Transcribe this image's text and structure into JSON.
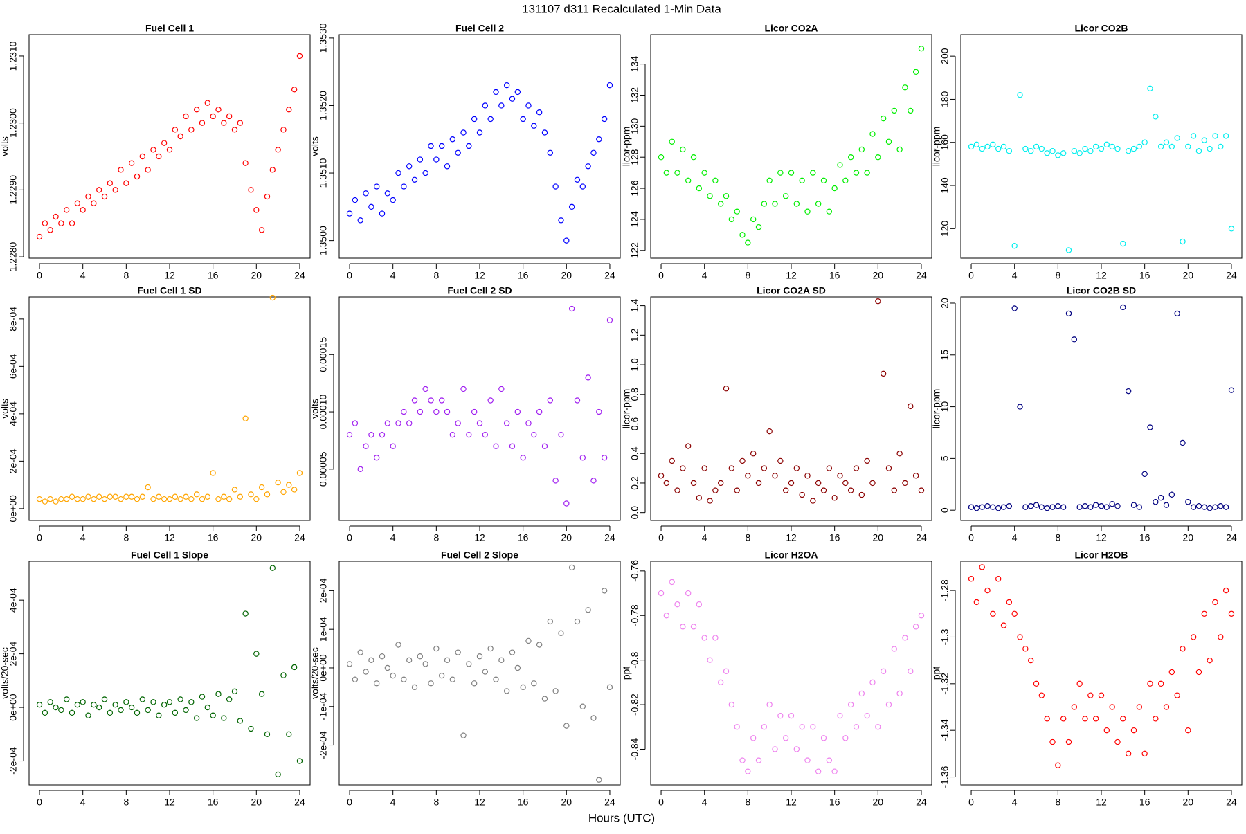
{
  "title": "131107   d311   Recalculated 1-Min Data",
  "xlabel": "Hours (UTC)",
  "x": [
    0,
    0.5,
    1,
    1.5,
    2,
    2.5,
    3,
    3.5,
    4,
    4.5,
    5,
    5.5,
    6,
    6.5,
    7,
    7.5,
    8,
    8.5,
    9,
    9.5,
    10,
    10.5,
    11,
    11.5,
    12,
    12.5,
    13,
    13.5,
    14,
    14.5,
    15,
    15.5,
    16,
    16.5,
    17,
    17.5,
    18,
    18.5,
    19,
    19.5,
    20,
    20.5,
    21,
    21.5,
    22,
    22.5,
    23,
    23.5,
    24
  ],
  "xlim": [
    -0.96,
    24.96
  ],
  "xticks": [
    0,
    4,
    8,
    12,
    16,
    20,
    24
  ],
  "chart_data": [
    {
      "type": "scatter",
      "title": "Fuel Cell 1",
      "ylabel": "volts",
      "color": "#ff0000",
      "ylim": [
        1.22798,
        1.23132
      ],
      "yticks": [
        {
          "value": 1.228,
          "label": "1.2280"
        },
        {
          "value": 1.229,
          "label": "1.2290"
        },
        {
          "value": 1.23,
          "label": "1.2300"
        },
        {
          "value": 1.231,
          "label": "1.2310"
        }
      ],
      "values": [
        1.2283,
        1.2285,
        1.2284,
        1.2286,
        1.2285,
        1.2287,
        1.2285,
        1.2288,
        1.2287,
        1.2289,
        1.2288,
        1.229,
        1.2289,
        1.2291,
        1.229,
        1.2293,
        1.2291,
        1.2294,
        1.2292,
        1.2295,
        1.2293,
        1.2296,
        1.2295,
        1.2297,
        1.2296,
        1.2299,
        1.2298,
        1.2301,
        1.2299,
        1.2302,
        1.23,
        1.2303,
        1.2301,
        1.2302,
        1.23,
        1.2301,
        1.2299,
        1.23,
        1.2294,
        1.229,
        1.2287,
        1.2284,
        1.2289,
        1.2293,
        1.2296,
        1.2299,
        1.2302,
        1.2305,
        1.231
      ]
    },
    {
      "type": "scatter",
      "title": "Fuel Cell 2",
      "ylabel": "volts",
      "color": "#0000ff",
      "ylim": [
        1.34974,
        1.35305
      ],
      "yticks": [
        {
          "value": 1.35,
          "label": "1.3500"
        },
        {
          "value": 1.351,
          "label": "1.3510"
        },
        {
          "value": 1.352,
          "label": "1.3520"
        },
        {
          "value": 1.353,
          "label": "1.3530"
        }
      ],
      "values": [
        1.3504,
        1.3506,
        1.3503,
        1.3507,
        1.3505,
        1.3508,
        1.3504,
        1.3507,
        1.3506,
        1.351,
        1.3508,
        1.3511,
        1.3509,
        1.3512,
        1.351,
        1.3514,
        1.3512,
        1.3514,
        1.3511,
        1.3515,
        1.3513,
        1.3516,
        1.3514,
        1.3518,
        1.3516,
        1.352,
        1.3518,
        1.3522,
        1.352,
        1.3523,
        1.3521,
        1.3522,
        1.3518,
        1.352,
        1.3517,
        1.3519,
        1.3516,
        1.3513,
        1.3508,
        1.3503,
        1.35,
        1.3505,
        1.3509,
        1.3508,
        1.3511,
        1.3513,
        1.3515,
        1.3518,
        1.3523
      ]
    },
    {
      "type": "scatter",
      "title": "Licor CO2A",
      "ylabel": "licor-ppm",
      "color": "#00ee00",
      "ylim": [
        121.5,
        135.9
      ],
      "yticks": [
        122,
        124,
        126,
        128,
        130,
        132,
        134
      ],
      "values": [
        128,
        127,
        129,
        127,
        128.5,
        126.5,
        128,
        126,
        127,
        125.5,
        126.5,
        125,
        125.5,
        124,
        124.5,
        123,
        122.5,
        124,
        123.5,
        125,
        126.5,
        125,
        127,
        125.5,
        127,
        125,
        126.5,
        124.5,
        127,
        125,
        126.5,
        124.5,
        126,
        127.5,
        126.5,
        128,
        127,
        128.5,
        127,
        129.5,
        128,
        130.5,
        129,
        131,
        128.5,
        132.5,
        131,
        133.5,
        135
      ]
    },
    {
      "type": "scatter",
      "title": "Licor CO2B",
      "ylabel": "licor-ppm",
      "color": "#00eeee",
      "ylim": [
        106.3,
        210
      ],
      "yticks": [
        120,
        140,
        160,
        180,
        200
      ],
      "values": [
        158,
        159,
        157,
        158,
        159,
        157,
        158,
        156,
        112,
        182,
        157,
        156,
        158,
        157,
        155,
        156,
        154,
        155,
        110,
        156,
        155,
        157,
        156,
        158,
        157,
        159,
        158,
        157,
        113,
        156,
        157,
        158,
        160,
        185,
        172,
        158,
        160,
        158,
        162,
        114,
        158,
        163,
        156,
        161,
        157,
        163,
        158,
        163,
        120
      ]
    },
    {
      "type": "scatter",
      "title": "Fuel Cell 1 SD",
      "ylabel": "volts",
      "color": "#ffa500",
      "ylim": [
        -5e-05,
        0.000893
      ],
      "yticks": [
        {
          "value": 0,
          "label": "0e+00"
        },
        {
          "value": 0.0002,
          "label": "2e-04"
        },
        {
          "value": 0.0004,
          "label": "4e-04"
        },
        {
          "value": 0.0006,
          "label": "6e-04"
        },
        {
          "value": 0.0008,
          "label": "8e-04"
        }
      ],
      "values": [
        4e-05,
        3e-05,
        4e-05,
        3e-05,
        4e-05,
        4e-05,
        5e-05,
        4e-05,
        4e-05,
        5e-05,
        4e-05,
        5e-05,
        4e-05,
        5e-05,
        5e-05,
        4e-05,
        5e-05,
        5e-05,
        4e-05,
        5e-05,
        9e-05,
        4e-05,
        5e-05,
        4e-05,
        4e-05,
        5e-05,
        4e-05,
        5e-05,
        4e-05,
        6e-05,
        4e-05,
        5e-05,
        0.00015,
        4e-05,
        5e-05,
        4e-05,
        8e-05,
        5e-05,
        0.00038,
        6e-05,
        4e-05,
        9e-05,
        6e-05,
        0.00089,
        0.00011,
        7e-05,
        0.0001,
        8e-05,
        0.00015
      ]
    },
    {
      "type": "scatter",
      "title": "Fuel Cell 2 SD",
      "ylabel": "volts",
      "color": "#a020f0",
      "ylim": [
        5.2e-06,
        0.0002003
      ],
      "yticks": [
        5e-05,
        {
          "value": 0.0001,
          "label": "0.00010"
        },
        0.00015
      ],
      "values": [
        8e-05,
        9e-05,
        5e-05,
        7e-05,
        8e-05,
        6e-05,
        8e-05,
        9e-05,
        7e-05,
        9e-05,
        0.0001,
        9e-05,
        0.00011,
        0.0001,
        0.00012,
        0.00011,
        0.0001,
        0.00011,
        0.0001,
        8e-05,
        9e-05,
        0.00012,
        8e-05,
        0.0001,
        9e-05,
        8e-05,
        0.00011,
        7e-05,
        0.00012,
        9e-05,
        7e-05,
        0.0001,
        6e-05,
        9e-05,
        8e-05,
        0.0001,
        7e-05,
        0.00011,
        4e-05,
        8e-05,
        2e-05,
        0.00019,
        0.00011,
        6e-05,
        0.00013,
        4e-05,
        0.0001,
        6e-05,
        0.00018
      ]
    },
    {
      "type": "scatter",
      "title": "Licor CO2A SD",
      "ylabel": "licor-ppm",
      "color": "#8b0000",
      "ylim": [
        -0.053,
        1.459
      ],
      "yticks": [
        {
          "value": 0,
          "label": "0.0"
        },
        0.2,
        0.4,
        0.6,
        0.8,
        {
          "value": 1,
          "label": "1.0"
        },
        1.2,
        1.4
      ],
      "values": [
        0.25,
        0.2,
        0.35,
        0.15,
        0.3,
        0.45,
        0.2,
        0.1,
        0.3,
        0.08,
        0.15,
        0.2,
        0.84,
        0.3,
        0.15,
        0.35,
        0.25,
        0.4,
        0.2,
        0.3,
        0.55,
        0.25,
        0.35,
        0.15,
        0.2,
        0.3,
        0.12,
        0.25,
        0.08,
        0.2,
        0.15,
        0.3,
        0.1,
        0.25,
        0.2,
        0.15,
        0.3,
        0.12,
        0.35,
        0.2,
        1.43,
        0.94,
        0.3,
        0.15,
        0.4,
        0.2,
        0.72,
        0.25,
        0.15
      ]
    },
    {
      "type": "scatter",
      "title": "Licor CO2B SD",
      "ylabel": "licor-ppm",
      "color": "#000080",
      "ylim": [
        -0.99,
        20.6
      ],
      "yticks": [
        0,
        5,
        10,
        15,
        20
      ],
      "values": [
        0.3,
        0.2,
        0.3,
        0.4,
        0.3,
        0.2,
        0.3,
        0.4,
        19.5,
        10,
        0.3,
        0.4,
        0.5,
        0.3,
        0.2,
        0.3,
        0.4,
        0.3,
        19,
        16.5,
        0.3,
        0.4,
        0.3,
        0.5,
        0.4,
        0.3,
        0.6,
        0.4,
        19.6,
        11.5,
        0.5,
        0.3,
        3.5,
        8,
        0.8,
        1.2,
        0.5,
        1.5,
        19,
        6.5,
        0.8,
        0.3,
        0.4,
        0.3,
        0.2,
        0.3,
        0.4,
        0.3,
        11.6
      ]
    },
    {
      "type": "scatter",
      "title": "Fuel Cell 1 Slope",
      "ylabel": "volts/20-sec",
      "color": "#006400",
      "ylim": [
        -0.000289,
        0.000545
      ],
      "yticks": [
        {
          "value": -0.0002,
          "label": "-2e-04"
        },
        {
          "value": 0,
          "label": "0e+00"
        },
        {
          "value": 0.0002,
          "label": "2e-04"
        },
        {
          "value": 0.0004,
          "label": "4e-04"
        }
      ],
      "values": [
        1e-05,
        -2e-05,
        2e-05,
        0,
        -1e-05,
        3e-05,
        -2e-05,
        1e-05,
        2e-05,
        -3e-05,
        1e-05,
        0,
        3e-05,
        -2e-05,
        1e-05,
        -1e-05,
        2e-05,
        0,
        -2e-05,
        3e-05,
        -1e-05,
        2e-05,
        -3e-05,
        1e-05,
        2e-05,
        -2e-05,
        3e-05,
        -1e-05,
        2e-05,
        -4e-05,
        4e-05,
        0,
        -3e-05,
        5e-05,
        -4e-05,
        3e-05,
        6e-05,
        -5e-05,
        0.00035,
        -8e-05,
        0.0002,
        5e-05,
        -0.0001,
        0.00052,
        -0.00025,
        0.00012,
        -0.0001,
        0.00015,
        -0.0002
      ]
    },
    {
      "type": "scatter",
      "title": "Fuel Cell 2 Slope",
      "ylabel": "volts/20-sec",
      "color": "#808080",
      "ylim": [
        -0.000303,
        0.000276
      ],
      "yticks": [
        {
          "value": -0.0002,
          "label": "-2e-04"
        },
        {
          "value": -0.0001,
          "label": "-1e-04"
        },
        {
          "value": 0,
          "label": "0e+00"
        },
        {
          "value": 0.0001,
          "label": "1e-04"
        },
        {
          "value": 0.0002,
          "label": "2e-04"
        }
      ],
      "values": [
        1e-05,
        -3e-05,
        4e-05,
        -1e-05,
        2e-05,
        -4e-05,
        3e-05,
        0,
        -2e-05,
        6e-05,
        -3e-05,
        2e-05,
        -5e-05,
        3e-05,
        1e-05,
        -4e-05,
        5e-05,
        -2e-05,
        2e-05,
        -3e-05,
        4e-05,
        -0.000175,
        1e-05,
        -4e-05,
        3e-05,
        -1e-05,
        5e-05,
        -3e-05,
        2e-05,
        -6e-05,
        4e-05,
        0,
        -5e-05,
        7e-05,
        -4e-05,
        6e-05,
        -8e-05,
        0.00012,
        -6e-05,
        9e-05,
        -0.00015,
        0.00026,
        0.00012,
        -0.0001,
        0.00015,
        -0.00013,
        -0.00029,
        0.0002,
        -5e-05
      ]
    },
    {
      "type": "scatter",
      "title": "Licor H2OA",
      "ylabel": "ppt",
      "color": "#ee82ee",
      "ylim": [
        -0.856,
        -0.7557
      ],
      "yticks": [
        -0.84,
        -0.82,
        -0.8,
        -0.78,
        -0.76
      ],
      "values": [
        -0.77,
        -0.78,
        -0.765,
        -0.775,
        -0.785,
        -0.77,
        -0.785,
        -0.775,
        -0.79,
        -0.8,
        -0.79,
        -0.81,
        -0.805,
        -0.82,
        -0.83,
        -0.845,
        -0.85,
        -0.835,
        -0.845,
        -0.83,
        -0.82,
        -0.84,
        -0.825,
        -0.835,
        -0.825,
        -0.84,
        -0.83,
        -0.845,
        -0.83,
        -0.85,
        -0.835,
        -0.845,
        -0.85,
        -0.825,
        -0.835,
        -0.82,
        -0.83,
        -0.815,
        -0.825,
        -0.81,
        -0.83,
        -0.805,
        -0.82,
        -0.795,
        -0.815,
        -0.79,
        -0.805,
        -0.785,
        -0.78
      ]
    },
    {
      "type": "scatter",
      "title": "Licor H2OB",
      "ylabel": "ppt",
      "color": "#ff0000",
      "ylim": [
        -1.3634,
        -1.2675
      ],
      "yticks": [
        -1.36,
        -1.34,
        -1.32,
        -1.3,
        -1.28
      ],
      "values": [
        -1.275,
        -1.285,
        -1.27,
        -1.28,
        -1.29,
        -1.275,
        -1.295,
        -1.285,
        -1.29,
        -1.3,
        -1.305,
        -1.31,
        -1.32,
        -1.325,
        -1.335,
        -1.345,
        -1.355,
        -1.335,
        -1.345,
        -1.33,
        -1.32,
        -1.335,
        -1.325,
        -1.335,
        -1.325,
        -1.34,
        -1.33,
        -1.345,
        -1.335,
        -1.35,
        -1.34,
        -1.33,
        -1.35,
        -1.32,
        -1.335,
        -1.32,
        -1.33,
        -1.315,
        -1.325,
        -1.305,
        -1.34,
        -1.3,
        -1.315,
        -1.29,
        -1.31,
        -1.285,
        -1.3,
        -1.28,
        -1.29
      ]
    }
  ]
}
